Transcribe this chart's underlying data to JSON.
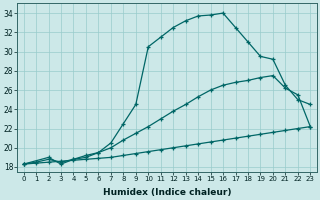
{
  "xlabel": "Humidex (Indice chaleur)",
  "bg_color": "#cce8e8",
  "grid_color": "#99cccc",
  "line_color": "#006666",
  "xlim": [
    -0.5,
    23.5
  ],
  "ylim": [
    17.5,
    35.0
  ],
  "yticks": [
    18,
    20,
    22,
    24,
    26,
    28,
    30,
    32,
    34
  ],
  "xticks": [
    0,
    1,
    2,
    3,
    4,
    5,
    6,
    7,
    8,
    9,
    10,
    11,
    12,
    13,
    14,
    15,
    16,
    17,
    18,
    19,
    20,
    21,
    22,
    23
  ],
  "line1_x": [
    0,
    1,
    2,
    3,
    4,
    5,
    6,
    7,
    8,
    9,
    10,
    11,
    12,
    13,
    14,
    15,
    16,
    17,
    18,
    19,
    20,
    21,
    22,
    23
  ],
  "line1_y": [
    18.3,
    18.4,
    18.5,
    18.6,
    18.7,
    18.8,
    18.9,
    19.0,
    19.2,
    19.4,
    19.6,
    19.8,
    20.0,
    20.2,
    20.4,
    20.6,
    20.8,
    21.0,
    21.2,
    21.4,
    21.6,
    21.8,
    22.0,
    22.2
  ],
  "line2_x": [
    0,
    1,
    2,
    3,
    4,
    5,
    6,
    7,
    8,
    9,
    10,
    11,
    12,
    13,
    14,
    15,
    16,
    17,
    18,
    19,
    20,
    21,
    22,
    23
  ],
  "line2_y": [
    18.3,
    18.5,
    18.8,
    18.5,
    18.8,
    19.2,
    19.5,
    20.0,
    20.8,
    21.5,
    22.2,
    23.0,
    23.8,
    24.5,
    25.3,
    26.0,
    26.5,
    26.8,
    27.0,
    27.3,
    27.5,
    26.2,
    25.5,
    22.2
  ],
  "line3_x": [
    0,
    2,
    3,
    4,
    5,
    6,
    7,
    8,
    9,
    10,
    11,
    12,
    13,
    14,
    15,
    16,
    17,
    18,
    19,
    20,
    21,
    22,
    23
  ],
  "line3_y": [
    18.3,
    19.0,
    18.3,
    18.8,
    19.0,
    19.5,
    20.5,
    22.5,
    24.5,
    30.5,
    31.5,
    32.5,
    33.2,
    33.7,
    33.8,
    34.0,
    32.5,
    31.0,
    29.5,
    29.2,
    26.5,
    25.0,
    24.5
  ]
}
